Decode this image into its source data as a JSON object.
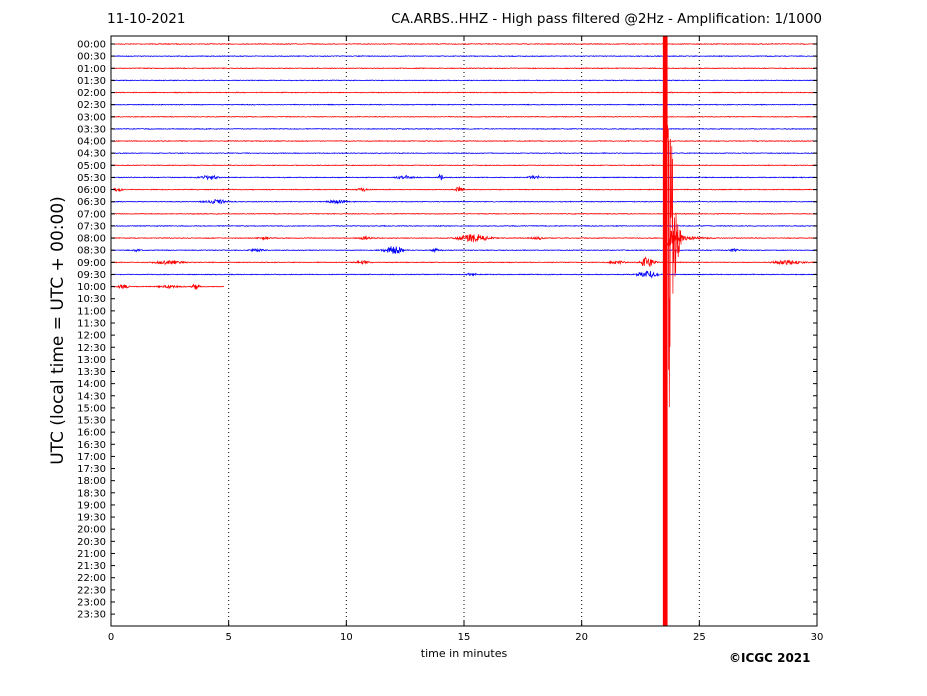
{
  "header": {
    "date": "11-10-2021",
    "title": "CA.ARBS..HHZ - High pass filtered @2Hz - Amplification: 1/1000"
  },
  "footer": {
    "copyright": "©ICGC 2021"
  },
  "chart_data": {
    "type": "line",
    "title": "CA.ARBS..HHZ - High pass filtered @2Hz - Amplification: 1/1000",
    "xlabel": "time in minutes",
    "ylabel": "UTC (local time = UTC + 00:00)",
    "xlim": [
      0,
      30
    ],
    "x_ticks": [
      0,
      5,
      10,
      15,
      20,
      25,
      30
    ],
    "grid": "vertical dotted lines every 5 minutes",
    "colors": {
      "red": "#ff0000",
      "blue": "#0000ff"
    },
    "color_pattern": "traces alternate red / blue starting with red at 00:00",
    "rows": [
      "00:00",
      "00:30",
      "01:00",
      "01:30",
      "02:00",
      "02:30",
      "03:00",
      "03:30",
      "04:00",
      "04:30",
      "05:00",
      "05:30",
      "06:00",
      "06:30",
      "07:00",
      "07:30",
      "08:00",
      "08:30",
      "09:00",
      "09:30",
      "10:00",
      "10:30",
      "11:00",
      "11:30",
      "12:00",
      "12:30",
      "13:00",
      "13:30",
      "14:00",
      "14:30",
      "15:00",
      "15:30",
      "16:00",
      "16:30",
      "17:00",
      "17:30",
      "18:00",
      "18:30",
      "19:00",
      "19:30",
      "20:00",
      "20:30",
      "21:00",
      "21:30",
      "22:00",
      "22:30",
      "23:00",
      "23:30"
    ],
    "recorded_until": {
      "row": "10:00",
      "minute": 4.8
    },
    "bursts": [
      {
        "row": "05:30",
        "minute": 4.2,
        "amplitude": 2.0,
        "width": 0.5
      },
      {
        "row": "05:30",
        "minute": 12.5,
        "amplitude": 1.5,
        "width": 0.5
      },
      {
        "row": "05:30",
        "minute": 14.0,
        "amplitude": 6.0,
        "width": 0.12
      },
      {
        "row": "05:30",
        "minute": 18.0,
        "amplitude": 1.5,
        "width": 0.4
      },
      {
        "row": "06:00",
        "minute": 0.3,
        "amplitude": 2.0,
        "width": 0.2
      },
      {
        "row": "06:00",
        "minute": 10.7,
        "amplitude": 1.5,
        "width": 0.3
      },
      {
        "row": "06:00",
        "minute": 14.8,
        "amplitude": 3.0,
        "width": 0.2
      },
      {
        "row": "06:30",
        "minute": 4.5,
        "amplitude": 2.0,
        "width": 0.6
      },
      {
        "row": "06:30",
        "minute": 9.6,
        "amplitude": 1.5,
        "width": 0.5
      },
      {
        "row": "08:00",
        "minute": 6.5,
        "amplitude": 1.0,
        "width": 0.3
      },
      {
        "row": "08:00",
        "minute": 10.8,
        "amplitude": 1.2,
        "width": 0.4
      },
      {
        "row": "08:00",
        "minute": 15.4,
        "amplitude": 4.0,
        "width": 0.8
      },
      {
        "row": "08:00",
        "minute": 18.1,
        "amplitude": 1.2,
        "width": 0.4
      },
      {
        "row": "08:30",
        "minute": 1.1,
        "amplitude": 1.0,
        "width": 0.2
      },
      {
        "row": "08:30",
        "minute": 6.2,
        "amplitude": 1.2,
        "width": 0.4
      },
      {
        "row": "08:30",
        "minute": 12.0,
        "amplitude": 4.0,
        "width": 0.5
      },
      {
        "row": "08:30",
        "minute": 13.8,
        "amplitude": 1.2,
        "width": 0.3
      },
      {
        "row": "08:30",
        "minute": 26.5,
        "amplitude": 1.2,
        "width": 0.3
      },
      {
        "row": "09:00",
        "minute": 2.4,
        "amplitude": 1.8,
        "width": 0.8
      },
      {
        "row": "09:00",
        "minute": 10.7,
        "amplitude": 1.5,
        "width": 0.4
      },
      {
        "row": "09:00",
        "minute": 21.5,
        "amplitude": 1.5,
        "width": 0.4
      },
      {
        "row": "09:00",
        "minute": 22.8,
        "amplitude": 6.0,
        "width": 0.35
      },
      {
        "row": "09:00",
        "minute": 28.8,
        "amplitude": 2.0,
        "width": 0.8
      },
      {
        "row": "09:30",
        "minute": 15.3,
        "amplitude": 1.2,
        "width": 0.3
      },
      {
        "row": "09:30",
        "minute": 22.8,
        "amplitude": 4.0,
        "width": 0.5
      },
      {
        "row": "10:00",
        "minute": 0.5,
        "amplitude": 2.0,
        "width": 0.3
      },
      {
        "row": "10:00",
        "minute": 2.5,
        "amplitude": 1.2,
        "width": 0.6
      },
      {
        "row": "10:00",
        "minute": 3.6,
        "amplitude": 3.0,
        "width": 0.2
      }
    ],
    "earthquake": {
      "row": "08:00",
      "onset_minute": 23.45,
      "saturated_until_minute": 23.65,
      "coda_until_minute": 27.5,
      "description": "large teleseismic event; saturated trace spans full height of plot"
    }
  }
}
